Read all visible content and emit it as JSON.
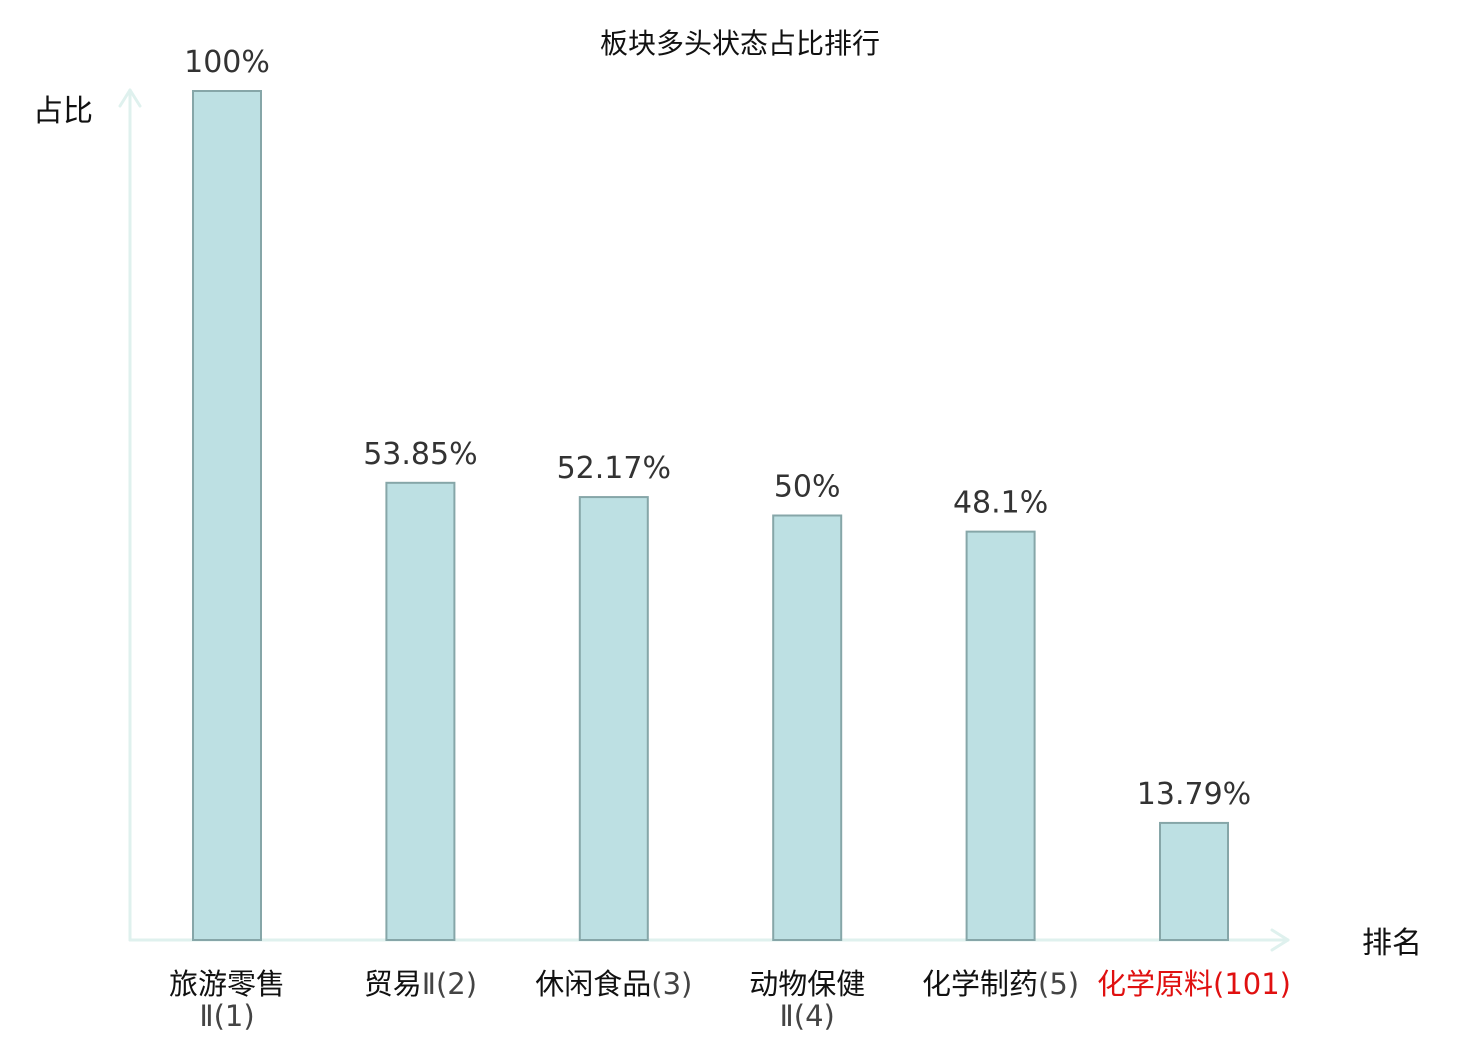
{
  "chart_data": {
    "type": "bar",
    "title": "板块多头状态占比排行",
    "ylabel": "占比",
    "xlabel": "排名",
    "ylim": [
      0,
      100
    ],
    "grid": false,
    "legend": "none",
    "categories": [
      {
        "name": "旅游零售",
        "rank": "Ⅱ(1)",
        "highlight": false,
        "two_line": true
      },
      {
        "name": "贸易",
        "rank": "Ⅱ(2)",
        "highlight": false,
        "two_line": false
      },
      {
        "name": "休闲食品",
        "rank": "(3)",
        "highlight": false,
        "two_line": false
      },
      {
        "name": "动物保健",
        "rank": "Ⅱ(4)",
        "highlight": false,
        "two_line": true
      },
      {
        "name": "化学制药",
        "rank": "(5)",
        "highlight": false,
        "two_line": false
      },
      {
        "name": "化学原料",
        "rank": "(101)",
        "highlight": true,
        "two_line": false
      }
    ],
    "values": [
      100,
      53.85,
      52.17,
      50,
      48.1,
      13.79
    ],
    "value_labels": [
      "100%",
      "53.85%",
      "52.17%",
      "50%",
      "48.1%",
      "13.79%"
    ],
    "colors": {
      "bar_fill": "#bde0e3",
      "bar_stroke": "#86a6a8",
      "axis": "#dff1ee",
      "text": "#111111",
      "rank_text": "#444444",
      "highlight": "#e01010"
    }
  }
}
